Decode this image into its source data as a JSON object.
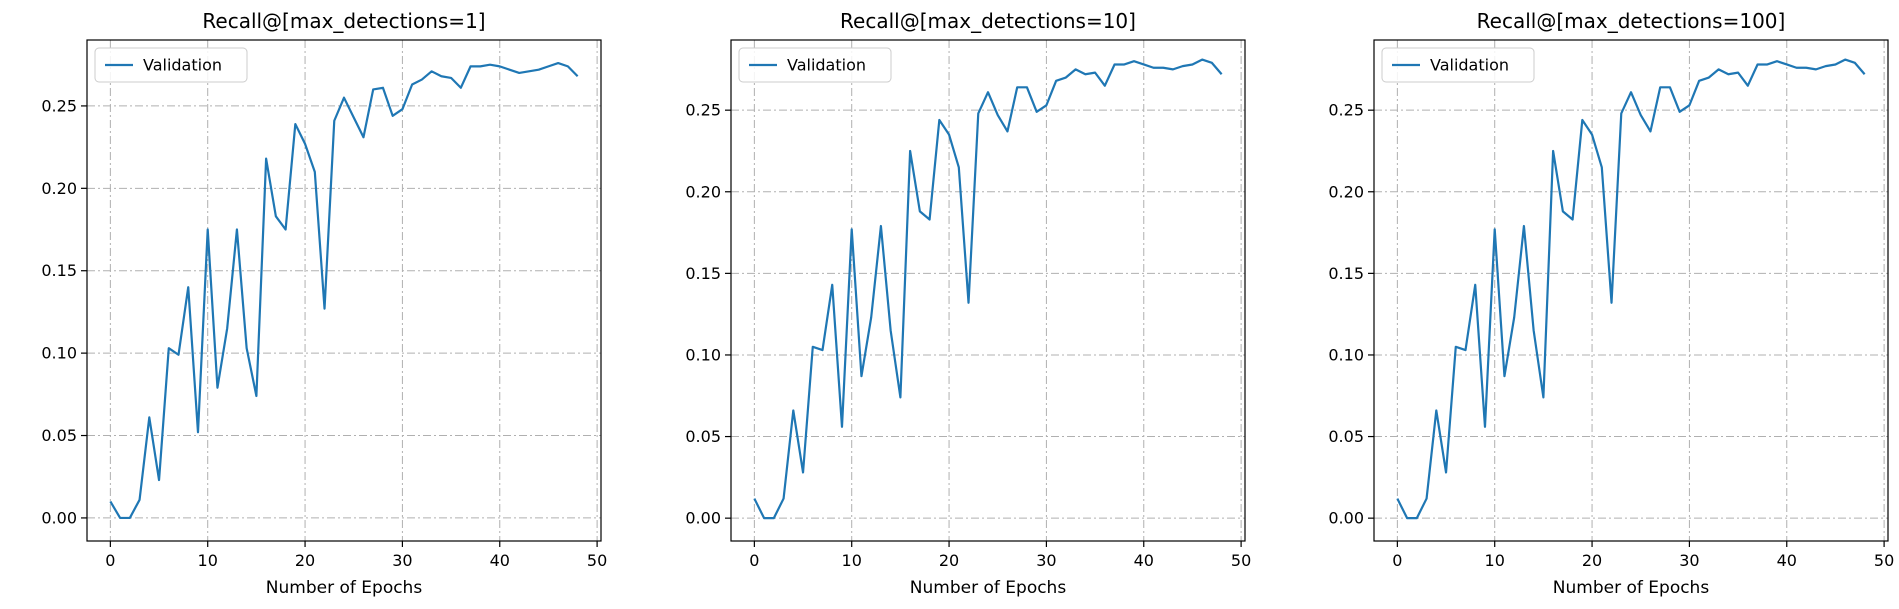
{
  "chart_data": [
    {
      "type": "line",
      "title": "Recall@[max_detections=1]",
      "xlabel": "Number of Epochs",
      "ylabel": "",
      "xlim": [
        -2.4,
        50.4
      ],
      "ylim": [
        -0.014,
        0.29
      ],
      "xticks": [
        0,
        10,
        20,
        30,
        40,
        50
      ],
      "yticks": [
        0.0,
        0.05,
        0.1,
        0.15,
        0.2,
        0.25
      ],
      "ytick_labels": [
        "0.00",
        "0.05",
        "0.10",
        "0.15",
        "0.20",
        "0.25"
      ],
      "grid": true,
      "legend": "upper-left",
      "series": [
        {
          "name": "Validation",
          "color": "#1f77b4",
          "x": [
            0,
            1,
            2,
            3,
            4,
            5,
            6,
            7,
            8,
            9,
            10,
            11,
            12,
            13,
            14,
            15,
            16,
            17,
            18,
            19,
            20,
            21,
            22,
            23,
            24,
            25,
            26,
            27,
            28,
            29,
            30,
            31,
            32,
            33,
            34,
            35,
            36,
            37,
            38,
            39,
            40,
            41,
            42,
            43,
            44,
            45,
            46,
            47,
            48
          ],
          "values": [
            0.01,
            0.0,
            0.0,
            0.011,
            0.061,
            0.023,
            0.103,
            0.099,
            0.14,
            0.052,
            0.175,
            0.079,
            0.115,
            0.175,
            0.103,
            0.074,
            0.218,
            0.183,
            0.175,
            0.239,
            0.227,
            0.21,
            0.127,
            0.241,
            0.255,
            0.243,
            0.231,
            0.26,
            0.261,
            0.244,
            0.248,
            0.263,
            0.266,
            0.271,
            0.268,
            0.267,
            0.261,
            0.274,
            0.274,
            0.275,
            0.274,
            0.272,
            0.27,
            0.271,
            0.272,
            0.274,
            0.276,
            0.274,
            0.268
          ]
        }
      ]
    },
    {
      "type": "line",
      "title": "Recall@[max_detections=10]",
      "xlabel": "Number of Epochs",
      "ylabel": "",
      "xlim": [
        -2.4,
        50.4
      ],
      "ylim": [
        -0.014,
        0.293
      ],
      "xticks": [
        0,
        10,
        20,
        30,
        40,
        50
      ],
      "yticks": [
        0.0,
        0.05,
        0.1,
        0.15,
        0.2,
        0.25
      ],
      "ytick_labels": [
        "0.00",
        "0.05",
        "0.10",
        "0.15",
        "0.20",
        "0.25"
      ],
      "grid": true,
      "legend": "upper-left",
      "series": [
        {
          "name": "Validation",
          "color": "#1f77b4",
          "x": [
            0,
            1,
            2,
            3,
            4,
            5,
            6,
            7,
            8,
            9,
            10,
            11,
            12,
            13,
            14,
            15,
            16,
            17,
            18,
            19,
            20,
            21,
            22,
            23,
            24,
            25,
            26,
            27,
            28,
            29,
            30,
            31,
            32,
            33,
            34,
            35,
            36,
            37,
            38,
            39,
            40,
            41,
            42,
            43,
            44,
            45,
            46,
            47,
            48
          ],
          "values": [
            0.012,
            0.0,
            0.0,
            0.012,
            0.066,
            0.028,
            0.105,
            0.103,
            0.143,
            0.056,
            0.177,
            0.087,
            0.123,
            0.179,
            0.115,
            0.074,
            0.225,
            0.188,
            0.183,
            0.244,
            0.235,
            0.215,
            0.132,
            0.248,
            0.261,
            0.247,
            0.237,
            0.264,
            0.264,
            0.249,
            0.253,
            0.268,
            0.27,
            0.275,
            0.272,
            0.273,
            0.265,
            0.278,
            0.278,
            0.28,
            0.278,
            0.276,
            0.276,
            0.275,
            0.277,
            0.278,
            0.281,
            0.279,
            0.272
          ]
        }
      ]
    },
    {
      "type": "line",
      "title": "Recall@[max_detections=100]",
      "xlabel": "Number of Epochs",
      "ylabel": "",
      "xlim": [
        -2.4,
        50.4
      ],
      "ylim": [
        -0.014,
        0.293
      ],
      "xticks": [
        0,
        10,
        20,
        30,
        40,
        50
      ],
      "yticks": [
        0.0,
        0.05,
        0.1,
        0.15,
        0.2,
        0.25
      ],
      "ytick_labels": [
        "0.00",
        "0.05",
        "0.10",
        "0.15",
        "0.20",
        "0.25"
      ],
      "grid": true,
      "legend": "upper-left",
      "series": [
        {
          "name": "Validation",
          "color": "#1f77b4",
          "x": [
            0,
            1,
            2,
            3,
            4,
            5,
            6,
            7,
            8,
            9,
            10,
            11,
            12,
            13,
            14,
            15,
            16,
            17,
            18,
            19,
            20,
            21,
            22,
            23,
            24,
            25,
            26,
            27,
            28,
            29,
            30,
            31,
            32,
            33,
            34,
            35,
            36,
            37,
            38,
            39,
            40,
            41,
            42,
            43,
            44,
            45,
            46,
            47,
            48
          ],
          "values": [
            0.012,
            0.0,
            0.0,
            0.012,
            0.066,
            0.028,
            0.105,
            0.103,
            0.143,
            0.056,
            0.177,
            0.087,
            0.123,
            0.179,
            0.115,
            0.074,
            0.225,
            0.188,
            0.183,
            0.244,
            0.235,
            0.215,
            0.132,
            0.248,
            0.261,
            0.247,
            0.237,
            0.264,
            0.264,
            0.249,
            0.253,
            0.268,
            0.27,
            0.275,
            0.272,
            0.273,
            0.265,
            0.278,
            0.278,
            0.28,
            0.278,
            0.276,
            0.276,
            0.275,
            0.277,
            0.278,
            0.281,
            0.279,
            0.272
          ]
        }
      ]
    }
  ]
}
